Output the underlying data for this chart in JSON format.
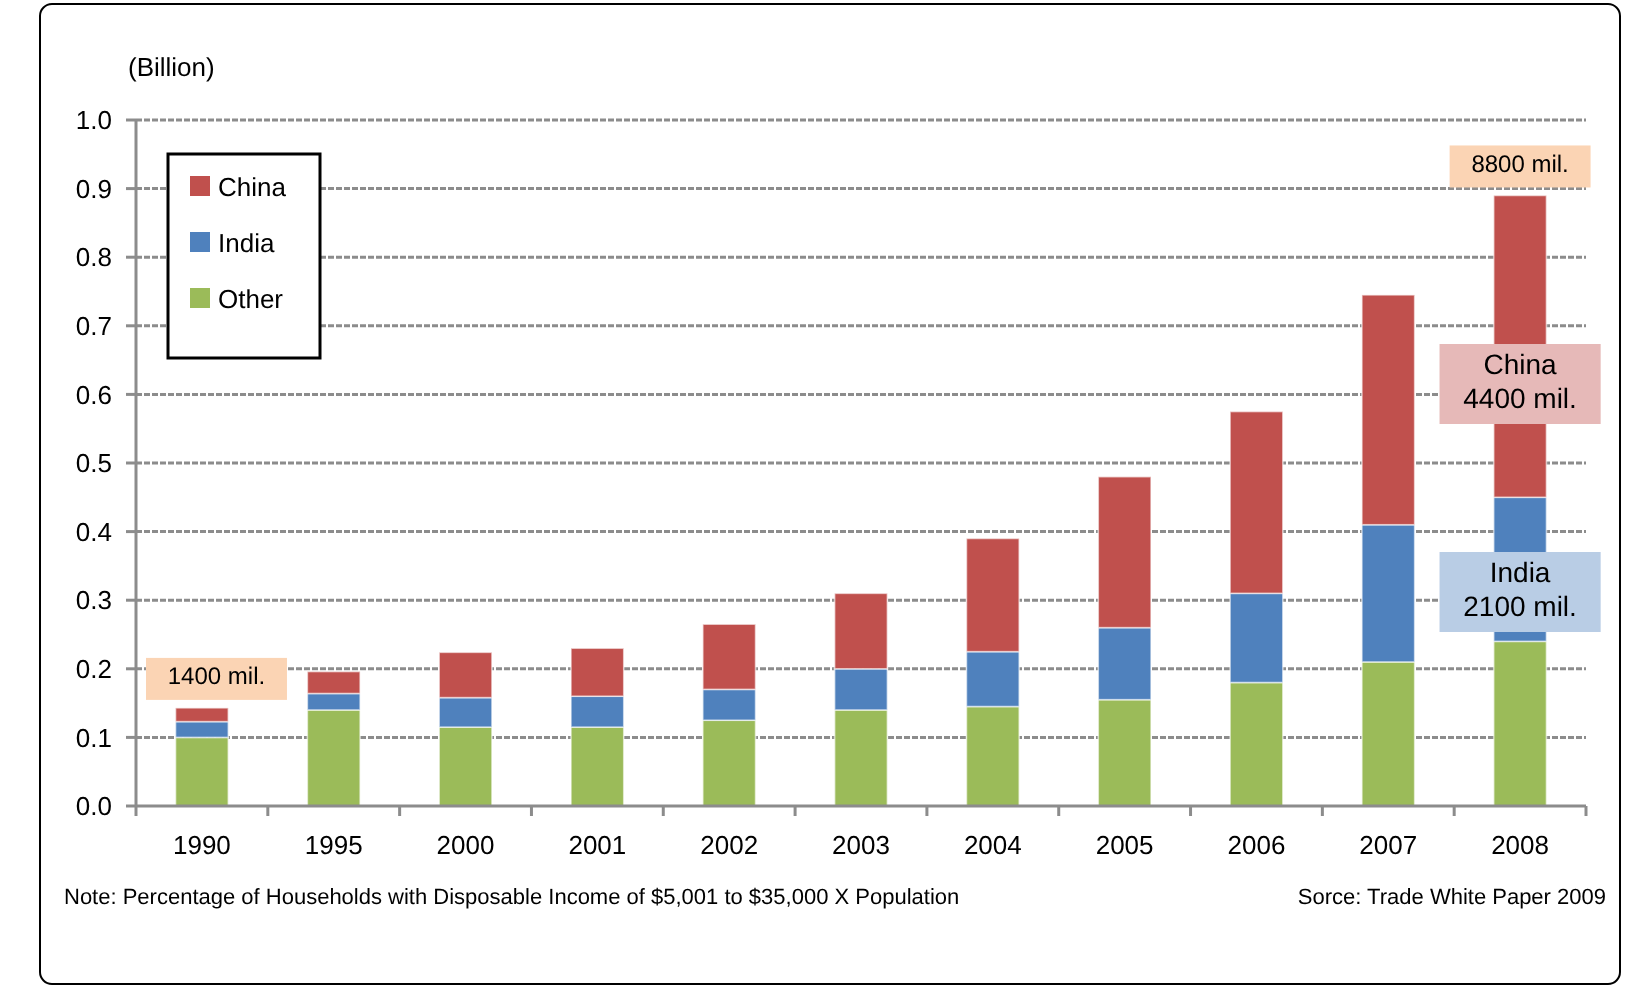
{
  "chart_data": {
    "type": "bar",
    "stacked": true,
    "ylabel": "(Billion)",
    "categories": [
      "1990",
      "1995",
      "2000",
      "2001",
      "2002",
      "2003",
      "2004",
      "2005",
      "2006",
      "2007",
      "2008"
    ],
    "series": [
      {
        "name": "Other",
        "color": "#9bbb59",
        "values": [
          0.1,
          0.14,
          0.115,
          0.115,
          0.125,
          0.14,
          0.145,
          0.155,
          0.18,
          0.21,
          0.24
        ]
      },
      {
        "name": "India",
        "color": "#4f81bd",
        "values": [
          0.023,
          0.024,
          0.043,
          0.045,
          0.045,
          0.06,
          0.08,
          0.105,
          0.13,
          0.2,
          0.21
        ]
      },
      {
        "name": "China",
        "color": "#c0504d",
        "values": [
          0.02,
          0.032,
          0.066,
          0.07,
          0.095,
          0.11,
          0.165,
          0.22,
          0.265,
          0.335,
          0.44
        ]
      }
    ],
    "ylim": [
      0,
      1
    ],
    "yticks": [
      {
        "value": 0,
        "label": "0.0"
      },
      0.1,
      0.2,
      0.3,
      0.4,
      0.5,
      0.6,
      0.7,
      0.8,
      0.9,
      {
        "value": 1,
        "label": "1.0"
      }
    ],
    "grid": "y",
    "legend": "top left",
    "annotations": [
      {
        "text": "1400 mil.",
        "x": "1990",
        "y": 0.143
      },
      {
        "text": "8800 mil.",
        "x": "2008",
        "y": 0.89
      },
      "China\n4400 mil.",
      "India\n2100 mil.",
      "Note: Percentage of Households with Disposable Income of $5,001 to $35,000 X Population",
      "Sorce: Trade White Paper 2009"
    ]
  }
}
